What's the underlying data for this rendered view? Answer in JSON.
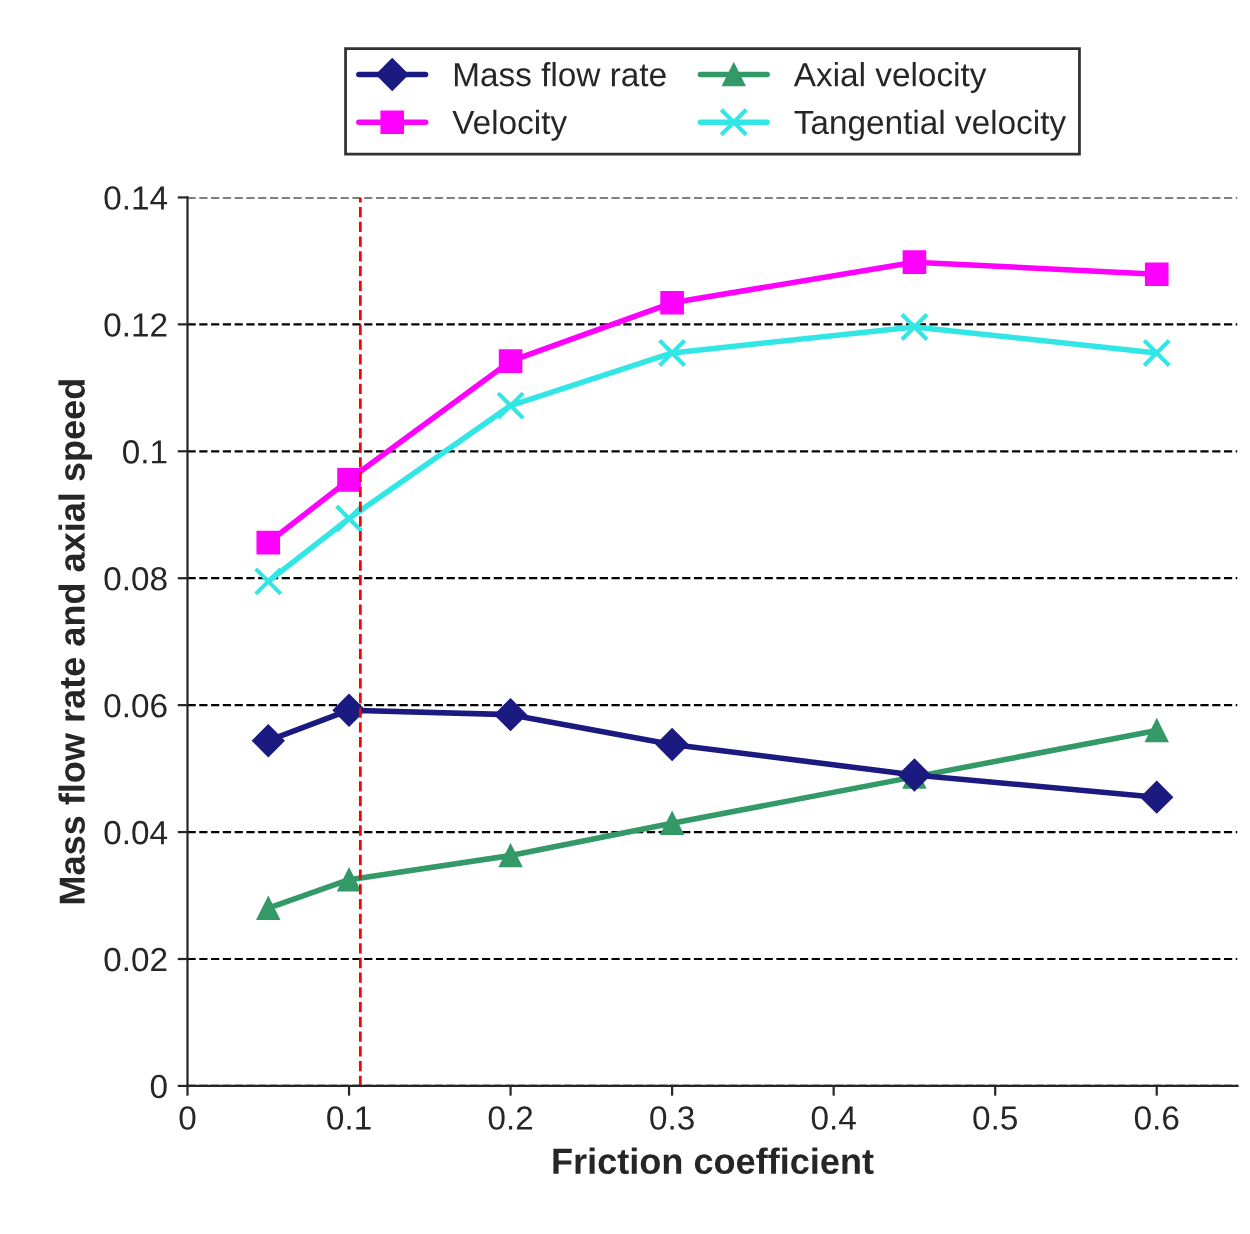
{
  "chart_data": {
    "type": "line",
    "xlabel": "Friction coefficient",
    "ylabel": "Mass flow rate and axial speed",
    "x": [
      0.05,
      0.1,
      0.2,
      0.3,
      0.45,
      0.6
    ],
    "series": [
      {
        "name": "Mass flow rate",
        "color": "#1a1a80",
        "marker": "diamond",
        "values": [
          0.0544,
          0.0592,
          0.0585,
          0.0538,
          0.049,
          0.0455
        ]
      },
      {
        "name": "Velocity",
        "color": "#ff00ff",
        "marker": "square",
        "values": [
          0.0856,
          0.0955,
          0.1142,
          0.1234,
          0.1298,
          0.1279
        ]
      },
      {
        "name": "Axial velocity",
        "color": "#339966",
        "marker": "triangle",
        "values": [
          0.028,
          0.0325,
          0.0363,
          0.0414,
          0.0487,
          0.056
        ]
      },
      {
        "name": "Tangential velocity",
        "color": "#33e6e6",
        "marker": "cross",
        "values": [
          0.0795,
          0.0894,
          0.1072,
          0.1155,
          0.1196,
          0.1155
        ]
      }
    ],
    "xlim": [
      0,
      0.65
    ],
    "xticks": [
      0,
      0.1,
      0.2,
      0.3,
      0.4,
      0.5,
      0.6
    ],
    "ylim": [
      0,
      0.14
    ],
    "yticks": [
      0,
      0.02,
      0.04,
      0.06,
      0.08,
      0.1,
      0.12,
      0.14
    ],
    "ref_lines": [
      {
        "axis": "x",
        "value": 0.107,
        "color": "#ff0000",
        "line_style": "dashed"
      }
    ],
    "grid": "y",
    "legend": "top"
  }
}
